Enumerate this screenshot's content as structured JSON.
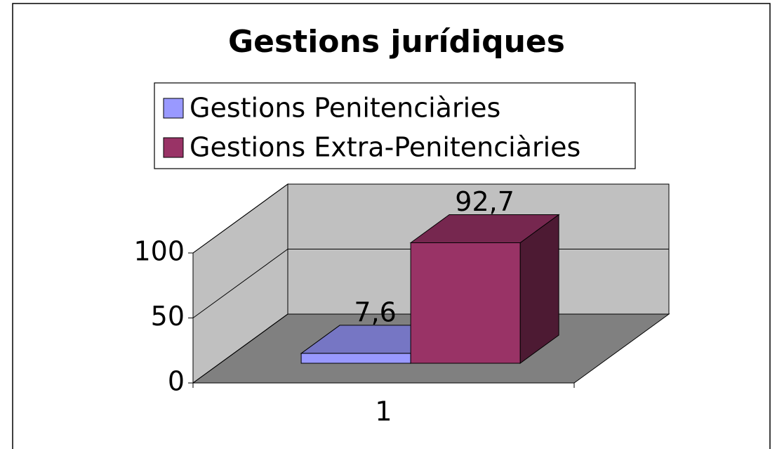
{
  "chart_data": {
    "type": "bar3d",
    "title": "Gestions jurídiques",
    "categories": [
      "1"
    ],
    "series": [
      {
        "name": "Gestions Penitenciàries",
        "color": "#9999ff",
        "values": [
          7.6
        ],
        "value_labels": [
          "7,6"
        ]
      },
      {
        "name": "Gestions Extra-Penitenciàries",
        "color": "#993366",
        "values": [
          92.7
        ],
        "value_labels": [
          "92,7"
        ]
      }
    ],
    "ylim": [
      0,
      100
    ],
    "yticks": [
      0,
      50,
      100
    ],
    "grid": true,
    "legend": "top"
  }
}
